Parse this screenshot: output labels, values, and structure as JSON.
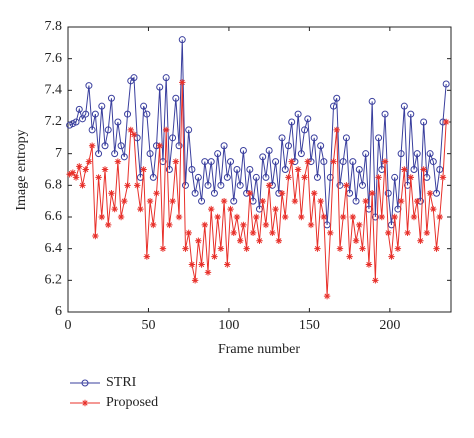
{
  "chart_data": {
    "type": "line",
    "xlabel": "Frame number",
    "ylabel": "Image entropy",
    "xlim": [
      0,
      238
    ],
    "ylim": [
      6,
      7.8
    ],
    "xticks": [
      0,
      50,
      100,
      150,
      200
    ],
    "yticks": [
      6,
      6.2,
      6.4,
      6.6,
      6.8,
      7,
      7.2,
      7.4,
      7.6,
      7.8
    ],
    "legend": "bottom-left",
    "x": [
      1,
      3,
      5,
      7,
      9,
      11,
      13,
      15,
      17,
      19,
      21,
      23,
      25,
      27,
      29,
      31,
      33,
      35,
      37,
      39,
      41,
      43,
      45,
      47,
      49,
      51,
      53,
      55,
      57,
      59,
      61,
      63,
      65,
      67,
      69,
      71,
      73,
      75,
      77,
      79,
      81,
      83,
      85,
      87,
      89,
      91,
      93,
      95,
      97,
      99,
      101,
      103,
      105,
      107,
      109,
      111,
      113,
      115,
      117,
      119,
      121,
      123,
      125,
      127,
      129,
      131,
      133,
      135,
      137,
      139,
      141,
      143,
      145,
      147,
      149,
      151,
      153,
      155,
      157,
      159,
      161,
      163,
      165,
      167,
      169,
      171,
      173,
      175,
      177,
      179,
      181,
      183,
      185,
      187,
      189,
      191,
      193,
      195,
      197,
      199,
      201,
      203,
      205,
      207,
      209,
      211,
      213,
      215,
      217,
      219,
      221,
      223,
      225,
      227,
      229,
      231,
      233,
      235
    ],
    "series": [
      {
        "name": "STRI",
        "color": "#3a3f9e",
        "marker": "circle",
        "values": [
          7.18,
          7.19,
          7.2,
          7.28,
          7.22,
          7.25,
          7.43,
          7.15,
          7.25,
          7.0,
          7.3,
          7.05,
          7.15,
          7.35,
          7.0,
          7.2,
          7.05,
          6.98,
          7.25,
          7.46,
          7.48,
          7.1,
          6.85,
          7.3,
          7.25,
          7.0,
          6.85,
          7.05,
          7.42,
          6.95,
          7.48,
          6.9,
          7.1,
          7.35,
          7.05,
          7.72,
          6.8,
          7.15,
          6.9,
          6.75,
          6.85,
          6.7,
          6.95,
          6.8,
          6.95,
          6.75,
          7.0,
          6.8,
          7.05,
          6.85,
          6.95,
          6.7,
          6.9,
          6.8,
          7.02,
          6.75,
          6.9,
          6.7,
          6.85,
          6.65,
          6.98,
          6.85,
          7.02,
          6.8,
          6.95,
          6.75,
          7.1,
          6.9,
          7.05,
          7.2,
          6.95,
          7.25,
          7.0,
          7.15,
          7.22,
          6.95,
          7.1,
          6.85,
          7.05,
          6.95,
          6.55,
          6.85,
          7.3,
          7.35,
          6.8,
          6.95,
          7.1,
          6.75,
          6.95,
          6.7,
          6.9,
          6.8,
          7.0,
          6.65,
          7.33,
          6.6,
          7.1,
          6.9,
          7.25,
          6.75,
          6.55,
          6.85,
          6.65,
          7.0,
          7.3,
          6.8,
          7.25,
          6.9,
          7.0,
          6.7,
          7.2,
          6.85,
          7.0,
          6.95,
          6.75,
          6.9,
          7.2,
          7.44
        ]
      },
      {
        "name": "Proposed",
        "color": "#e8302a",
        "marker": "star",
        "values": [
          6.87,
          6.88,
          6.85,
          6.92,
          6.8,
          6.9,
          6.95,
          7.05,
          6.48,
          6.85,
          6.6,
          6.9,
          6.55,
          6.75,
          6.65,
          6.95,
          6.6,
          6.7,
          6.8,
          7.15,
          7.12,
          6.8,
          6.65,
          6.9,
          6.35,
          6.7,
          6.55,
          6.75,
          7.05,
          6.4,
          7.15,
          6.55,
          6.7,
          6.95,
          6.6,
          7.45,
          6.4,
          6.5,
          6.3,
          6.2,
          6.45,
          6.3,
          6.55,
          6.25,
          6.65,
          6.35,
          6.6,
          6.4,
          6.7,
          6.3,
          6.65,
          6.5,
          6.6,
          6.45,
          6.55,
          6.4,
          6.75,
          6.5,
          6.6,
          6.45,
          6.7,
          6.55,
          6.8,
          6.5,
          6.65,
          6.45,
          6.75,
          6.6,
          6.85,
          6.95,
          6.7,
          6.9,
          6.6,
          6.85,
          6.95,
          6.55,
          6.75,
          6.4,
          6.7,
          6.6,
          6.1,
          6.5,
          6.95,
          7.15,
          6.4,
          6.6,
          6.8,
          6.35,
          6.6,
          6.45,
          6.55,
          6.4,
          6.7,
          6.3,
          6.75,
          6.2,
          6.85,
          6.6,
          6.95,
          6.5,
          6.35,
          6.6,
          6.4,
          6.7,
          6.9,
          6.5,
          6.85,
          6.6,
          6.7,
          6.45,
          6.9,
          6.5,
          6.75,
          6.65,
          6.4,
          6.6,
          6.85,
          7.2
        ]
      }
    ]
  }
}
